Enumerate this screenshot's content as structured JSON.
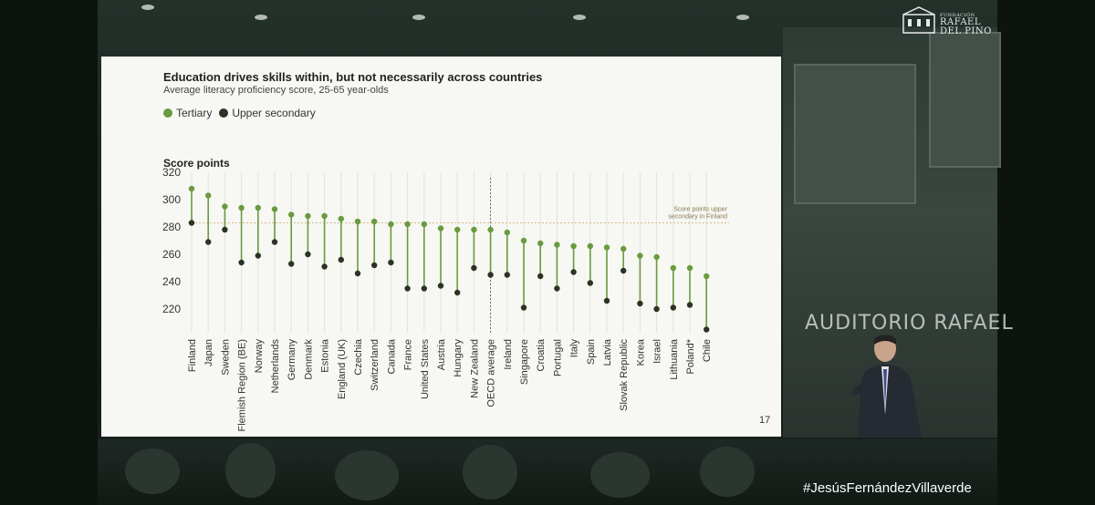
{
  "slide": {
    "title": "Education drives skills within, but not necessarily across countries",
    "subtitle": "Average literacy proficiency score, 25-65 year-olds",
    "page_number": "17"
  },
  "legend": {
    "tertiary": "Tertiary",
    "upper_secondary": "Upper secondary"
  },
  "overlay": {
    "logo_line1": "FUNDACIÓN",
    "logo_line2": "RAFAEL",
    "logo_line3": "DEL PINO",
    "hashtag": "#JesúsFernándezVillaverde",
    "auditorio": "AUDITORIO RAFAEL"
  },
  "colors": {
    "tertiary": "#6a9a3e",
    "upper_secondary": "#2b3324",
    "reference_line": "#c8a968"
  },
  "chart_data": {
    "type": "dumbbell",
    "title": "Education drives skills within, but not necessarily across countries",
    "subtitle": "Average literacy proficiency score, 25-65 year-olds",
    "ylabel": "Score points",
    "ylim": [
      200,
      320
    ],
    "yticks": [
      220,
      240,
      260,
      280,
      300,
      320
    ],
    "reference_line": {
      "value": 283,
      "label_line1": "Score points upper",
      "label_line2": "secondary in Finland"
    },
    "categories": [
      "Finland",
      "Japan",
      "Sweden",
      "Flemish Region (BE)",
      "Norway",
      "Netherlands",
      "Germany",
      "Denmark",
      "Estonia",
      "England (UK)",
      "Czechia",
      "Switzerland",
      "Canada",
      "France",
      "United States",
      "Austria",
      "Hungary",
      "New Zealand",
      "OECD average",
      "Ireland",
      "Singapore",
      "Croatia",
      "Portugal",
      "Italy",
      "Spain",
      "Latvia",
      "Slovak Republic",
      "Korea",
      "Israel",
      "Lithuania",
      "Poland*",
      "Chile"
    ],
    "series": [
      {
        "name": "Tertiary",
        "values": [
          308,
          303,
          295,
          294,
          294,
          293,
          289,
          288,
          288,
          286,
          284,
          284,
          282,
          282,
          282,
          279,
          278,
          278,
          278,
          276,
          270,
          268,
          267,
          266,
          266,
          265,
          264,
          259,
          258,
          250,
          250,
          244
        ]
      },
      {
        "name": "Upper secondary",
        "values": [
          283,
          269,
          278,
          254,
          259,
          269,
          253,
          260,
          251,
          256,
          246,
          252,
          254,
          235,
          235,
          237,
          232,
          250,
          245,
          245,
          221,
          244,
          235,
          247,
          239,
          226,
          248,
          224,
          220,
          221,
          223,
          205
        ]
      }
    ]
  }
}
